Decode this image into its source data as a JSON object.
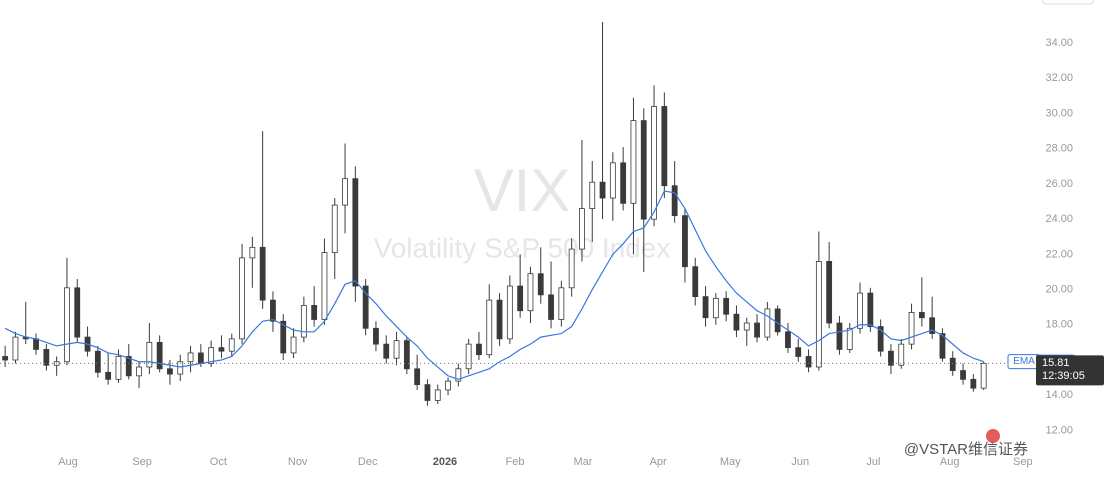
{
  "chart_data": {
    "type": "candlestick",
    "subtitle": "Volatility S&P 500 Index",
    "countdown": "12:39:05",
    "footer_brand": "@VSTAR维信证券",
    "xlim": [
      0,
      100
    ],
    "xticks": [
      {
        "value": 6.6,
        "label": "Aug"
      },
      {
        "value": 13.8,
        "label": "Sep"
      },
      {
        "value": 21.2,
        "label": "Oct"
      },
      {
        "value": 28.9,
        "label": "Nov"
      },
      {
        "value": 35.7,
        "label": "Dec"
      },
      {
        "value": 43.2,
        "label": "2026"
      },
      {
        "value": 50,
        "label": "Feb"
      },
      {
        "value": 56.6,
        "label": "Mar"
      },
      {
        "value": 63.9,
        "label": "Apr"
      },
      {
        "value": 70.9,
        "label": "May"
      },
      {
        "value": 77.7,
        "label": "Jun"
      },
      {
        "value": 84.8,
        "label": "Jul"
      },
      {
        "value": 92.2,
        "label": "Aug"
      },
      {
        "value": 99.3,
        "label": "Sep"
      }
    ],
    "ylim": [
      11,
      36.45
    ],
    "yticks": [
      {
        "value": 12,
        "label": "12.00"
      },
      {
        "value": 14,
        "label": "14.00"
      },
      {
        "value": 16,
        "label": "16.00"
      },
      {
        "value": 18,
        "label": "18.00"
      },
      {
        "value": 20,
        "label": "20.00"
      },
      {
        "value": 22,
        "label": "22.00"
      },
      {
        "value": 24,
        "label": "24.00"
      },
      {
        "value": 26,
        "label": "26.00"
      },
      {
        "value": 28,
        "label": "28.00"
      },
      {
        "value": 30,
        "label": "30.00"
      },
      {
        "value": 32,
        "label": "32.00"
      },
      {
        "value": 34,
        "label": "34.00"
      }
    ],
    "series": [
      {
        "name": "VIX",
        "up_color": "#ffffff",
        "down_color": "#3a3a3a",
        "edge_color": "#3a3a3a",
        "open": [
          16.2,
          16.0,
          17.3,
          17.2,
          16.6,
          15.7,
          15.9,
          20.1,
          17.3,
          16.5,
          15.3,
          14.9,
          16.2,
          15.1,
          15.6,
          17.0,
          15.5,
          15.2,
          15.9,
          16.4,
          15.8,
          16.7,
          16.5,
          17.2,
          21.8,
          22.4,
          19.4,
          18.2,
          16.4,
          17.3,
          19.1,
          18.3,
          22.1,
          24.8,
          26.3,
          20.2,
          17.8,
          16.9,
          16.1,
          17.1,
          15.5,
          14.6,
          13.7,
          14.3,
          14.8,
          15.5,
          16.9,
          16.3,
          19.4,
          17.2,
          20.2,
          18.8,
          20.9,
          19.7,
          18.3,
          20.1,
          22.3,
          24.6,
          26.1,
          25.2,
          27.2,
          24.9,
          29.6,
          24.0,
          30.4,
          25.9,
          24.2,
          21.3,
          19.6,
          18.4,
          19.5,
          18.6,
          17.7,
          18.1,
          17.3,
          18.9,
          17.6,
          16.7,
          16.2,
          15.6,
          21.6,
          18.1,
          16.6,
          17.8,
          19.8,
          17.9,
          16.5,
          15.7,
          16.9,
          18.7,
          18.4,
          17.5,
          16.1,
          15.4,
          14.9,
          14.4
        ],
        "high": [
          16.8,
          17.6,
          19.3,
          17.5,
          16.9,
          16.2,
          21.8,
          20.6,
          17.9,
          16.8,
          16.4,
          16.6,
          16.9,
          15.9,
          18.1,
          17.4,
          16.0,
          16.3,
          16.8,
          16.9,
          17.1,
          17.4,
          17.5,
          22.6,
          23.0,
          29.0,
          19.9,
          18.6,
          17.8,
          19.6,
          20.2,
          22.9,
          25.2,
          28.3,
          27.0,
          20.6,
          18.2,
          17.4,
          17.6,
          17.3,
          16.3,
          14.9,
          14.6,
          15.0,
          15.8,
          17.2,
          17.6,
          20.3,
          19.8,
          20.8,
          22.0,
          21.3,
          22.4,
          21.6,
          20.5,
          22.9,
          28.5,
          27.3,
          35.2,
          27.8,
          28.1,
          30.9,
          30.3,
          31.6,
          31.2,
          27.3,
          24.6,
          21.8,
          20.2,
          19.8,
          19.9,
          19.1,
          18.4,
          18.6,
          19.3,
          19.1,
          18.1,
          17.2,
          16.6,
          23.3,
          22.7,
          18.5,
          18.1,
          20.4,
          20.1,
          18.3,
          16.9,
          17.2,
          19.2,
          20.7,
          19.6,
          17.8,
          16.5,
          15.8,
          15.2,
          15.9
        ],
        "low": [
          15.6,
          15.8,
          16.9,
          16.3,
          15.4,
          15.1,
          15.7,
          17.0,
          16.2,
          15.0,
          14.6,
          14.7,
          14.9,
          14.4,
          15.2,
          15.3,
          14.6,
          14.8,
          15.3,
          15.6,
          15.6,
          16.1,
          16.2,
          16.9,
          20.1,
          18.9,
          17.6,
          16.0,
          16.1,
          17.0,
          17.9,
          18.0,
          20.6,
          23.2,
          19.3,
          17.4,
          16.5,
          15.8,
          15.7,
          15.2,
          14.3,
          13.4,
          13.5,
          14.0,
          14.5,
          15.2,
          16.0,
          16.1,
          16.8,
          16.9,
          18.4,
          18.1,
          19.2,
          17.8,
          17.9,
          19.6,
          21.6,
          22.7,
          24.0,
          23.9,
          24.5,
          22.0,
          21.0,
          23.6,
          25.2,
          23.8,
          20.4,
          19.1,
          17.9,
          18.0,
          18.2,
          17.3,
          16.8,
          17.0,
          17.1,
          17.4,
          16.4,
          15.9,
          15.3,
          15.4,
          17.8,
          16.3,
          16.4,
          17.5,
          17.6,
          16.2,
          15.2,
          15.5,
          16.6,
          17.9,
          17.2,
          15.9,
          15.1,
          14.6,
          14.2,
          14.3
        ],
        "close": [
          16.0,
          17.3,
          17.2,
          16.6,
          15.7,
          15.9,
          20.1,
          17.3,
          16.5,
          15.3,
          14.9,
          16.2,
          15.1,
          15.6,
          17.0,
          15.5,
          15.2,
          15.9,
          16.4,
          15.8,
          16.7,
          16.5,
          17.2,
          21.8,
          22.4,
          19.4,
          18.2,
          16.4,
          17.3,
          19.1,
          18.3,
          22.1,
          24.8,
          26.3,
          20.2,
          17.8,
          16.9,
          16.1,
          17.1,
          15.5,
          14.6,
          13.7,
          14.3,
          14.8,
          15.5,
          16.9,
          16.3,
          19.4,
          17.2,
          20.2,
          18.8,
          20.9,
          19.7,
          18.3,
          20.1,
          22.3,
          24.6,
          26.1,
          25.2,
          27.2,
          24.9,
          29.6,
          24.0,
          30.4,
          25.9,
          24.2,
          21.3,
          19.6,
          18.4,
          19.5,
          18.6,
          17.7,
          18.1,
          17.3,
          18.9,
          17.6,
          16.7,
          16.2,
          15.6,
          21.6,
          18.1,
          16.6,
          17.8,
          19.8,
          17.9,
          16.5,
          15.7,
          16.9,
          18.7,
          18.4,
          17.5,
          16.1,
          15.4,
          14.9,
          14.4,
          15.81
        ]
      },
      {
        "name": "EMA",
        "color": "#3a78e0",
        "values": [
          17.8,
          17.5,
          17.3,
          17.2,
          17.0,
          16.8,
          16.9,
          17.0,
          16.9,
          16.7,
          16.4,
          16.3,
          16.1,
          15.9,
          15.9,
          15.8,
          15.7,
          15.6,
          15.7,
          15.8,
          15.9,
          16.0,
          16.2,
          16.8,
          17.6,
          18.2,
          18.3,
          18.0,
          17.7,
          17.6,
          17.6,
          18.2,
          19.2,
          20.3,
          20.5,
          19.8,
          19.2,
          18.5,
          17.9,
          17.3,
          16.8,
          16.1,
          15.6,
          15.1,
          14.9,
          15.1,
          15.3,
          15.5,
          15.9,
          16.2,
          16.6,
          16.9,
          17.3,
          17.4,
          17.5,
          17.9,
          18.9,
          20.0,
          21.0,
          22.0,
          22.6,
          23.3,
          23.5,
          24.4,
          25.6,
          25.5,
          24.6,
          23.4,
          22.2,
          21.3,
          20.5,
          19.8,
          19.3,
          18.8,
          18.5,
          18.1,
          17.7,
          17.3,
          16.8,
          17.1,
          17.5,
          17.6,
          17.7,
          18.0,
          18.0,
          17.7,
          17.2,
          17.1,
          17.3,
          17.5,
          17.7,
          17.4,
          16.9,
          16.4,
          16.1,
          15.91
        ]
      }
    ]
  }
}
